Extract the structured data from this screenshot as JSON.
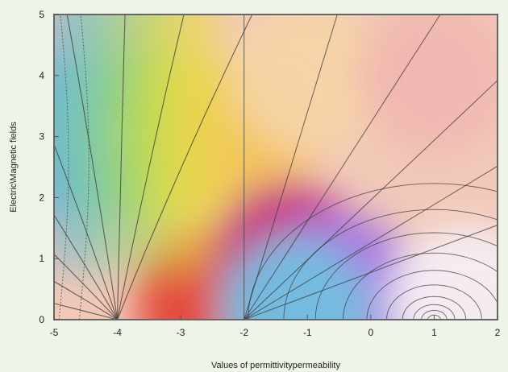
{
  "chart_data": {
    "type": "heatmap",
    "subtype": "contour-density-plot",
    "title": "",
    "xlabel": "Values of permittivitypermeability",
    "ylabel": "Electric\\Magnetic fields",
    "xlim": [
      -5,
      2
    ],
    "ylim": [
      0,
      5
    ],
    "x_ticks": [
      "-5",
      "-4",
      "-3",
      "-2",
      "-1",
      "0",
      "1",
      "2"
    ],
    "y_ticks": [
      "0",
      "1",
      "2",
      "3",
      "4",
      "5"
    ],
    "singular_points": [
      {
        "x": -4,
        "y": 0
      },
      {
        "x": -2,
        "y": 0
      },
      {
        "x": 1,
        "y": 0
      }
    ],
    "grid": false,
    "colors": {
      "frame": "#666666",
      "contour": "#3a3a3a",
      "background": "#eef5e8"
    },
    "color_stops": [
      {
        "x": -5,
        "y": 3,
        "color": "#6fb0d6"
      },
      {
        "x": -4.2,
        "y": 3,
        "color": "#7cc9b4"
      },
      {
        "x": -3.5,
        "y": 3,
        "color": "#9bd26a"
      },
      {
        "x": -2.8,
        "y": 3,
        "color": "#e3e24c"
      },
      {
        "x": -2.1,
        "y": 3,
        "color": "#f4c25e"
      },
      {
        "x": -1,
        "y": 4,
        "color": "#f6d4a6"
      },
      {
        "x": 1,
        "y": 4,
        "color": "#f0b7b1"
      },
      {
        "x": -2.5,
        "y": 0.3,
        "color": "#e14336"
      },
      {
        "x": -1.3,
        "y": 1,
        "color": "#c43185"
      },
      {
        "x": -0.5,
        "y": 0.5,
        "color": "#a878e5"
      },
      {
        "x": -1.2,
        "y": 0.1,
        "color": "#72bfdf"
      },
      {
        "x": 1.5,
        "y": 0.3,
        "color": "#f4eef4"
      }
    ]
  }
}
